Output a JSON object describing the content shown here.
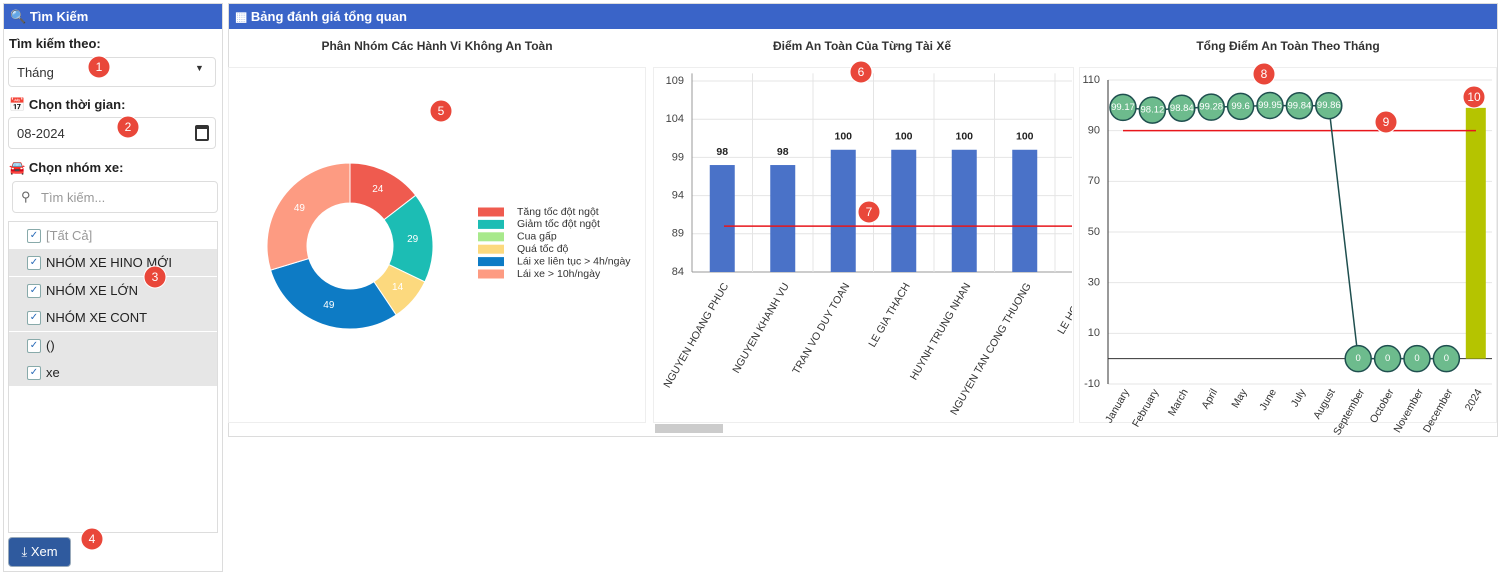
{
  "sidebar": {
    "title": "Tìm Kiếm",
    "search_by_label": "Tìm kiếm theo:",
    "search_by_value": "Tháng",
    "time_label": "Chọn thời gian:",
    "time_value": "08-2024",
    "group_label": "Chọn nhóm xe:",
    "group_search_placeholder": "Tìm kiếm...",
    "groups": [
      "[Tất Cả]",
      "NHÓM XE HINO MỚI",
      "NHÓM XE LỚN",
      "NHÓM XE CONT",
      "()",
      "xe"
    ],
    "button": "Xem"
  },
  "main": {
    "title": "Bảng đánh giá tổng quan"
  },
  "badges": [
    1,
    2,
    3,
    4,
    5,
    6,
    7,
    8,
    9,
    10
  ],
  "chart_data": [
    {
      "type": "donut",
      "title": "Phân Nhóm Các Hành Vi Không An Toàn",
      "categories": [
        "Tăng tốc đột ngột",
        "Giảm tốc đột ngột",
        "Cua gấp",
        "Quá tốc độ",
        "Lái xe liên tục > 4h/ngày",
        "Lái xe > 10h/ngày"
      ],
      "values": [
        24,
        29,
        0,
        14,
        49,
        49
      ],
      "colors": [
        "#ef5b4f",
        "#1cbdb4",
        "#a8e98c",
        "#fcd97e",
        "#0d7bc5",
        "#fd9b82"
      ]
    },
    {
      "type": "bar",
      "title": "Điểm An Toàn Của Từng Tài Xế",
      "categories": [
        "NGUYEN HOANG PHUC",
        "NGUYEN KHANH VU",
        "TRAN VO DUY TOAN",
        "LE GIA THACH",
        "HUYNH TRUNG NHAN",
        "NGUYEN TAN CONG THUONG",
        "LE HONG V"
      ],
      "values": [
        98,
        98,
        100,
        100,
        100,
        100,
        null
      ],
      "color": "#4a72c8",
      "ylim": [
        84,
        110
      ],
      "yticks": [
        84,
        89,
        94,
        99,
        104,
        109
      ],
      "grid": true,
      "reference_line": {
        "value": 90,
        "color": "#e8161b"
      }
    },
    {
      "type": "combo",
      "title": "Tổng Điểm An Toàn Theo Tháng",
      "categories": [
        "January",
        "February",
        "March",
        "April",
        "May",
        "June",
        "July",
        "August",
        "September",
        "October",
        "November",
        "December",
        "2024"
      ],
      "series": [
        {
          "type": "line",
          "color": "#1f4f4f",
          "marker_color": "#6dbb8d",
          "values": [
            99.17,
            98.12,
            98.84,
            99.28,
            99.6,
            99.95,
            99.84,
            99.86,
            0,
            0,
            0,
            0,
            null
          ]
        },
        {
          "type": "bar",
          "color": "#b5c400",
          "values": [
            null,
            null,
            null,
            null,
            null,
            null,
            null,
            null,
            null,
            null,
            null,
            null,
            99
          ]
        }
      ],
      "ylim": [
        -10,
        110
      ],
      "yticks": [
        -10,
        10,
        30,
        50,
        70,
        90,
        110
      ],
      "grid": true,
      "reference_line": {
        "value": 90,
        "color": "#e8161b"
      }
    }
  ]
}
